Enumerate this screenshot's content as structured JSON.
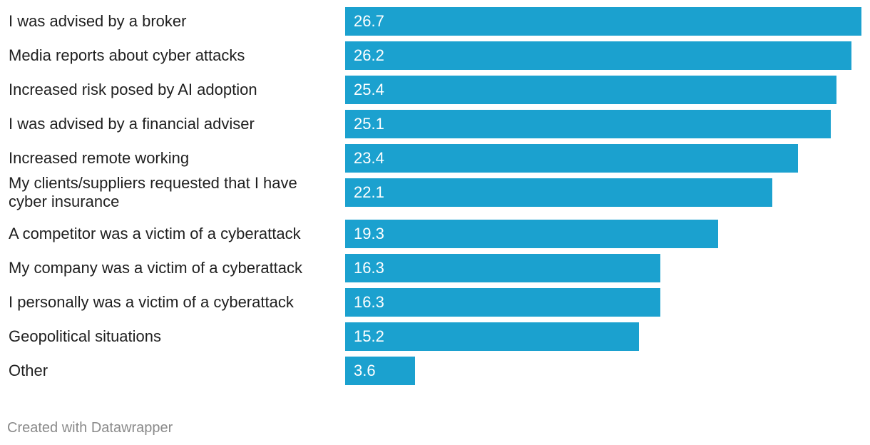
{
  "chart_data": {
    "type": "bar",
    "orientation": "horizontal",
    "categories": [
      "I was advised by a broker",
      "Media reports about cyber attacks",
      "Increased risk posed by AI adoption",
      "I was advised by a financial adviser",
      "Increased remote working",
      "My clients/suppliers requested that I have cyber insurance",
      "A competitor was a victim of a cyberattack",
      "My company was a victim of a cyberattack",
      "I personally was a victim of a cyberattack",
      "Geopolitical situations",
      "Other"
    ],
    "values": [
      26.7,
      26.2,
      25.4,
      25.1,
      23.4,
      22.1,
      19.3,
      16.3,
      16.3,
      15.2,
      3.6
    ],
    "value_labels": [
      "26.7",
      "26.2",
      "25.4",
      "25.1",
      "23.4",
      "22.1",
      "19.3",
      "16.3",
      "16.3",
      "15.2",
      "3.6"
    ],
    "xlim": [
      0,
      26.7
    ],
    "bar_color": "#1ba1cf",
    "grid": false,
    "legend": "none"
  },
  "footer": {
    "credit": "Created with Datawrapper"
  }
}
